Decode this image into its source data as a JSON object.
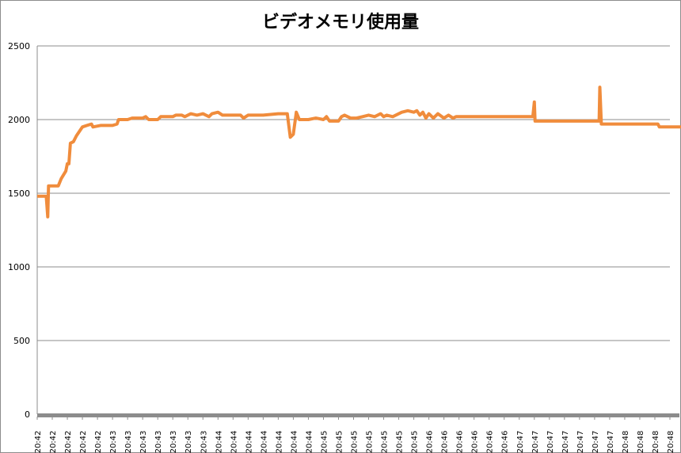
{
  "chart_data": {
    "type": "line",
    "title": "ビデオメモリ使用量",
    "xlabel": "",
    "ylabel": "",
    "ylim": [
      0,
      2500
    ],
    "yticks": [
      0,
      500,
      1000,
      1500,
      2000,
      2500
    ],
    "grid": true,
    "legend": "none",
    "x_tick_labels": [
      "20:42",
      "20:42",
      "20:42",
      "20:42",
      "20:42",
      "20:43",
      "20:43",
      "20:43",
      "20:43",
      "20:43",
      "20:43",
      "20:43",
      "20:44",
      "20:44",
      "20:44",
      "20:44",
      "20:44",
      "20:44",
      "20:44",
      "20:45",
      "20:45",
      "20:45",
      "20:45",
      "20:45",
      "20:45",
      "20:45",
      "20:46",
      "20:46",
      "20:46",
      "20:46",
      "20:46",
      "20:46",
      "20:47",
      "20:47",
      "20:47",
      "20:47",
      "20:47",
      "20:47",
      "20:47",
      "20:48",
      "20:48",
      "20:48",
      "20:48"
    ],
    "series": [
      {
        "color": "#f08c3c",
        "points": [
          [
            0.0,
            1480
          ],
          [
            0.6,
            1480
          ],
          [
            0.7,
            1340
          ],
          [
            0.75,
            1550
          ],
          [
            1.4,
            1550
          ],
          [
            1.6,
            1600
          ],
          [
            1.9,
            1650
          ],
          [
            2.0,
            1700
          ],
          [
            2.1,
            1700
          ],
          [
            2.2,
            1840
          ],
          [
            2.4,
            1850
          ],
          [
            2.6,
            1890
          ],
          [
            2.8,
            1920
          ],
          [
            3.0,
            1950
          ],
          [
            3.3,
            1960
          ],
          [
            3.6,
            1970
          ],
          [
            3.7,
            1950
          ],
          [
            4.2,
            1960
          ],
          [
            5.0,
            1960
          ],
          [
            5.3,
            1970
          ],
          [
            5.4,
            2000
          ],
          [
            6.0,
            2000
          ],
          [
            6.3,
            2010
          ],
          [
            7.0,
            2010
          ],
          [
            7.2,
            2020
          ],
          [
            7.4,
            2000
          ],
          [
            8.0,
            2000
          ],
          [
            8.2,
            2020
          ],
          [
            9.0,
            2020
          ],
          [
            9.2,
            2030
          ],
          [
            9.6,
            2030
          ],
          [
            9.8,
            2020
          ],
          [
            10.2,
            2040
          ],
          [
            10.6,
            2030
          ],
          [
            11.0,
            2040
          ],
          [
            11.4,
            2020
          ],
          [
            11.6,
            2040
          ],
          [
            12.0,
            2050
          ],
          [
            12.3,
            2030
          ],
          [
            13.0,
            2030
          ],
          [
            13.5,
            2030
          ],
          [
            13.7,
            2010
          ],
          [
            14.0,
            2030
          ],
          [
            15.0,
            2030
          ],
          [
            16.0,
            2040
          ],
          [
            16.6,
            2040
          ],
          [
            16.8,
            1880
          ],
          [
            17.0,
            1900
          ],
          [
            17.2,
            2050
          ],
          [
            17.4,
            2000
          ],
          [
            17.6,
            2000
          ],
          [
            18.0,
            2000
          ],
          [
            18.5,
            2010
          ],
          [
            19.0,
            2000
          ],
          [
            19.2,
            2020
          ],
          [
            19.4,
            1990
          ],
          [
            20.0,
            1990
          ],
          [
            20.2,
            2020
          ],
          [
            20.4,
            2030
          ],
          [
            20.8,
            2010
          ],
          [
            21.2,
            2010
          ],
          [
            21.6,
            2020
          ],
          [
            22.0,
            2030
          ],
          [
            22.4,
            2020
          ],
          [
            22.8,
            2040
          ],
          [
            23.0,
            2020
          ],
          [
            23.2,
            2030
          ],
          [
            23.6,
            2020
          ],
          [
            24.0,
            2040
          ],
          [
            24.2,
            2050
          ],
          [
            24.6,
            2060
          ],
          [
            25.0,
            2050
          ],
          [
            25.2,
            2060
          ],
          [
            25.4,
            2030
          ],
          [
            25.6,
            2050
          ],
          [
            25.8,
            2010
          ],
          [
            26.0,
            2040
          ],
          [
            26.3,
            2010
          ],
          [
            26.6,
            2040
          ],
          [
            27.0,
            2010
          ],
          [
            27.3,
            2030
          ],
          [
            27.6,
            2010
          ],
          [
            27.8,
            2020
          ],
          [
            28.5,
            2020
          ],
          [
            30.0,
            2020
          ],
          [
            31.0,
            2020
          ],
          [
            32.0,
            2020
          ],
          [
            32.9,
            2020
          ],
          [
            33.0,
            2120
          ],
          [
            33.05,
            1990
          ],
          [
            34.0,
            1990
          ],
          [
            36.0,
            1990
          ],
          [
            37.3,
            1990
          ],
          [
            37.35,
            2220
          ],
          [
            37.45,
            1970
          ],
          [
            38.0,
            1970
          ],
          [
            40.0,
            1970
          ],
          [
            41.2,
            1970
          ],
          [
            41.3,
            1950
          ],
          [
            43.0,
            1950
          ],
          [
            45.0,
            1950
          ],
          [
            47.5,
            1950
          ],
          [
            47.6,
            1930
          ],
          [
            48.0,
            1940
          ],
          [
            48.3,
            1970
          ],
          [
            48.6,
            1940
          ],
          [
            48.8,
            1960
          ],
          [
            49.0,
            1940
          ],
          [
            49.3,
            1960
          ],
          [
            49.6,
            1980
          ],
          [
            49.8,
            1990
          ],
          [
            50.2,
            1990
          ],
          [
            50.6,
            1985
          ],
          [
            51.0,
            1985
          ]
        ]
      }
    ]
  }
}
